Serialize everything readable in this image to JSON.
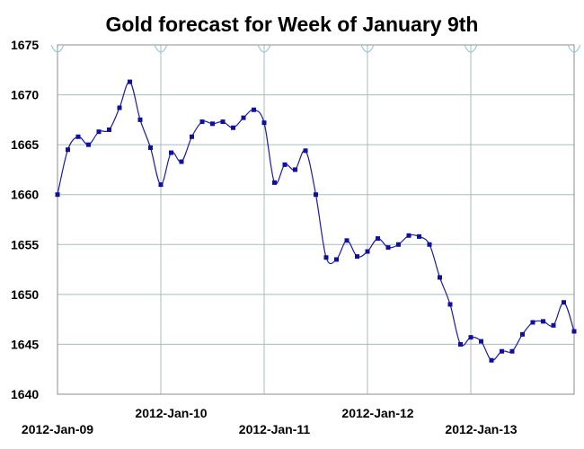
{
  "chart_data": {
    "type": "line",
    "title": "Gold forecast for Week of January 9th",
    "xlabel": "",
    "ylabel": "",
    "ylim": [
      1640,
      1675
    ],
    "yticks": [
      "1640",
      "1645",
      "1650",
      "1655",
      "1660",
      "1665",
      "1670",
      "1675"
    ],
    "xticks": [
      "2012-Jan-09",
      "2012-Jan-10",
      "2012-Jan-11",
      "2012-Jan-12",
      "2012-Jan-13"
    ],
    "grid": true,
    "line_color": "#1a1ab0",
    "marker_color": "#1010a0",
    "grid_color": "#a8bcbc",
    "series": [
      {
        "name": "",
        "x": [
          0,
          0.1,
          0.2,
          0.3,
          0.4,
          0.5,
          0.6,
          0.7,
          0.8,
          0.9,
          1.0,
          1.1,
          1.2,
          1.3,
          1.4,
          1.5,
          1.6,
          1.7,
          1.8,
          1.9,
          2.0,
          2.1,
          2.2,
          2.3,
          2.4,
          2.5,
          2.6,
          2.7,
          2.8,
          2.9,
          3.0,
          3.1,
          3.2,
          3.3,
          3.4,
          3.5,
          3.6,
          3.7,
          3.8,
          3.9,
          4.0,
          4.1,
          4.2,
          4.3,
          4.4,
          4.5,
          4.6,
          4.7,
          4.8,
          4.9,
          5.0
        ],
        "values": [
          1660.0,
          1664.5,
          1665.8,
          1665.0,
          1666.3,
          1666.5,
          1668.7,
          1671.3,
          1667.5,
          1664.7,
          1661.0,
          1664.2,
          1663.3,
          1665.8,
          1667.3,
          1667.1,
          1667.3,
          1666.7,
          1667.7,
          1668.5,
          1667.2,
          1661.2,
          1663.0,
          1662.5,
          1664.4,
          1660.0,
          1653.7,
          1653.5,
          1655.4,
          1653.8,
          1654.3,
          1655.6,
          1654.7,
          1655.0,
          1655.9,
          1655.8,
          1655.0,
          1651.7,
          1649.0,
          1645.0,
          1645.7,
          1645.3,
          1643.4,
          1644.3,
          1644.3,
          1646.0,
          1647.2,
          1647.3,
          1646.9,
          1649.2,
          1646.3
        ]
      }
    ]
  }
}
